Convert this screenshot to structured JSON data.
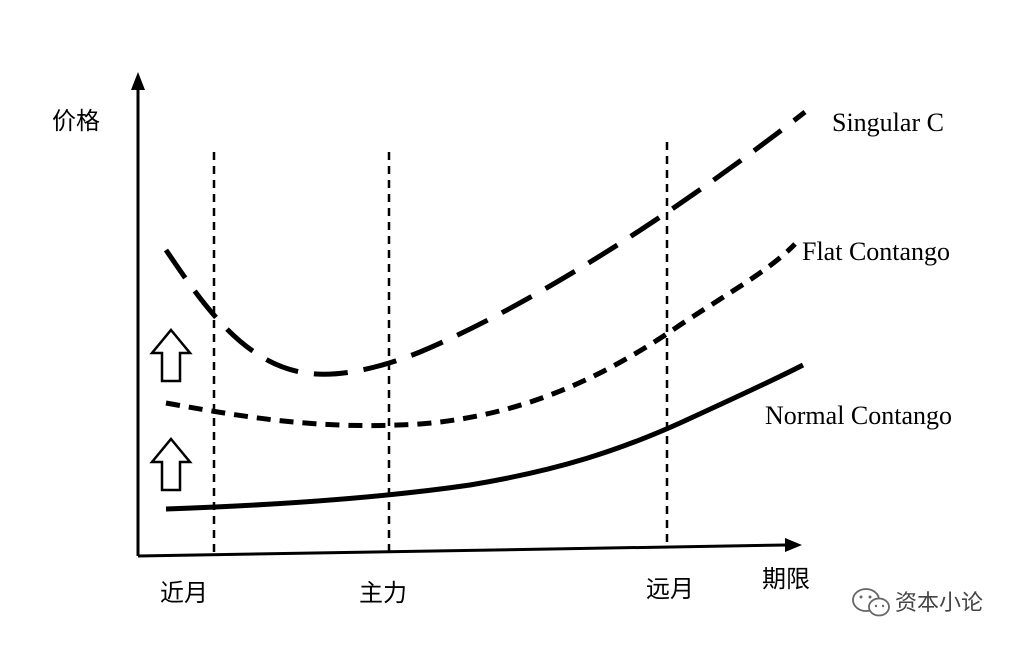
{
  "axes": {
    "y_label": "价格",
    "x_label": "期限"
  },
  "ticks": [
    {
      "label": "近月"
    },
    {
      "label": "主力"
    },
    {
      "label": "远月"
    }
  ],
  "curves": [
    {
      "name": "Singular C",
      "style": "long-dash"
    },
    {
      "name": "Flat Contango",
      "style": "short-dash"
    },
    {
      "name": "Normal Contango",
      "style": "solid"
    }
  ],
  "arrows": [
    {
      "direction": "up"
    },
    {
      "direction": "up"
    }
  ],
  "watermark": {
    "icon": "wechat-icon",
    "text": "资本小论"
  },
  "colors": {
    "ink": "#000000",
    "watermark": "#555555"
  }
}
